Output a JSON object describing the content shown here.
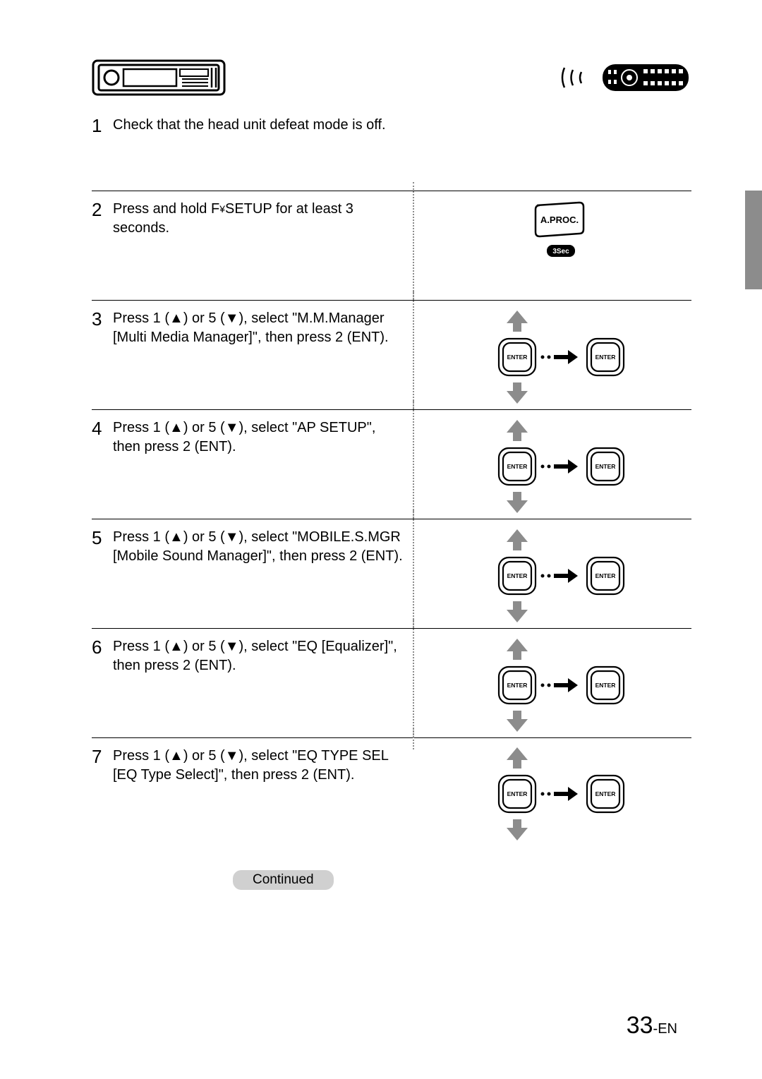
{
  "page_number_big": "33",
  "page_number_suffix": "-EN",
  "continued_label": "Continued",
  "aproc_label": "A.PROC.",
  "hold_label": "3Sec",
  "enter_label": "ENTER",
  "steps": {
    "1": {
      "num": "1",
      "text": "Check that the head unit defeat mode is off."
    },
    "2": {
      "num": "2",
      "text_a": "Press and hold F",
      "text_b": "SETUP for at least 3 seconds."
    },
    "3": {
      "num": "3",
      "text": "Press 1 (▲) or 5 (▼), select \"M.M.Manager [Multi Media Manager]\", then press 2 (ENT)."
    },
    "4": {
      "num": "4",
      "text": "Press 1 (▲) or 5 (▼), select \"AP SETUP\", then press 2 (ENT)."
    },
    "5": {
      "num": "5",
      "text": "Press 1 (▲) or 5 (▼), select \"MOBILE.S.MGR [Mobile Sound Manager]\", then press 2 (ENT)."
    },
    "6": {
      "num": "6",
      "text": "Press 1 (▲) or 5 (▼), select \"EQ [Equalizer]\", then press 2 (ENT)."
    },
    "7": {
      "num": "7",
      "text": "Press 1 (▲) or 5 (▼), select \"EQ TYPE SEL [EQ Type Select]\", then press 2 (ENT)."
    }
  },
  "colors": {
    "text": "#000000",
    "arrow_fill": "#8c8c8c",
    "tab_fill": "#8c8c8c",
    "continued_bg": "#d0d0d0",
    "dotted": "#8c8c8c"
  }
}
